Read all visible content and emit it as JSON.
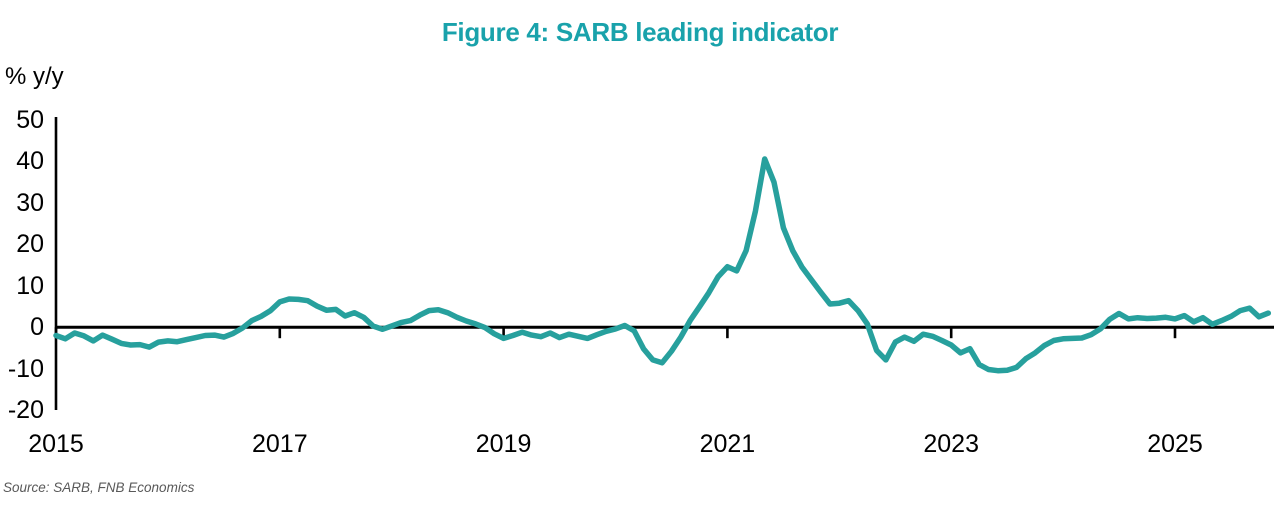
{
  "title": "Figure 4: SARB leading indicator",
  "source_note": "Source: SARB, FNB Economics",
  "colors": {
    "title": "#19A2AB",
    "line": "#27A09D",
    "axis": "#000000",
    "source_text": "#595959"
  },
  "chart_data": {
    "type": "line",
    "title": "Figure 4: SARB leading indicator",
    "xlabel": "",
    "ylabel": "% y/y",
    "x_start_year": 2015,
    "x_interval": "monthly",
    "x_end": "Nov 2025",
    "x_ticks": [
      2015,
      2017,
      2019,
      2021,
      2023,
      2025
    ],
    "y_ticks": [
      50,
      40,
      30,
      20,
      10,
      0,
      -10,
      -20
    ],
    "ylim": [
      -20,
      50
    ],
    "grid": false,
    "legend": "none",
    "zero_axis": true,
    "series": [
      {
        "name": "SARB leading indicator (% y/y)",
        "color": "#27A09D",
        "values": [
          -2.0,
          -2.8,
          -1.4,
          -2.1,
          -3.3,
          -1.9,
          -2.9,
          -3.9,
          -4.3,
          -4.2,
          -4.8,
          -3.6,
          -3.3,
          -3.5,
          -3.0,
          -2.5,
          -2.0,
          -1.9,
          -2.4,
          -1.5,
          -0.2,
          1.6,
          2.6,
          4.0,
          6.1,
          6.8,
          6.7,
          6.4,
          5.1,
          4.1,
          4.3,
          2.7,
          3.5,
          2.4,
          0.3,
          -0.5,
          0.3,
          1.1,
          1.6,
          2.9,
          4.0,
          4.2,
          3.5,
          2.4,
          1.5,
          0.8,
          -0.1,
          -1.6,
          -2.7,
          -2.0,
          -1.2,
          -1.9,
          -2.3,
          -1.4,
          -2.5,
          -1.7,
          -2.2,
          -2.7,
          -1.8,
          -1.0,
          -0.4,
          0.4,
          -0.9,
          -5.2,
          -7.9,
          -8.6,
          -5.8,
          -2.4,
          1.6,
          4.9,
          8.3,
          12.2,
          14.6,
          13.6,
          18.5,
          28.0,
          40.6,
          35.0,
          24.0,
          18.5,
          14.5,
          11.5,
          8.5,
          5.6,
          5.8,
          6.4,
          4.0,
          0.8,
          -5.6,
          -7.9,
          -3.6,
          -2.4,
          -3.4,
          -1.7,
          -2.2,
          -3.2,
          -4.3,
          -6.2,
          -5.2,
          -9.0,
          -10.2,
          -10.5,
          -10.4,
          -9.7,
          -7.6,
          -6.2,
          -4.4,
          -3.2,
          -2.8,
          -2.7,
          -2.6,
          -1.8,
          -0.4,
          1.9,
          3.3,
          2.0,
          2.3,
          2.1,
          2.2,
          2.4,
          2.0,
          2.8,
          1.3,
          2.3,
          0.7,
          1.6,
          2.6,
          4.0,
          4.6,
          2.5,
          3.4
        ]
      }
    ]
  }
}
